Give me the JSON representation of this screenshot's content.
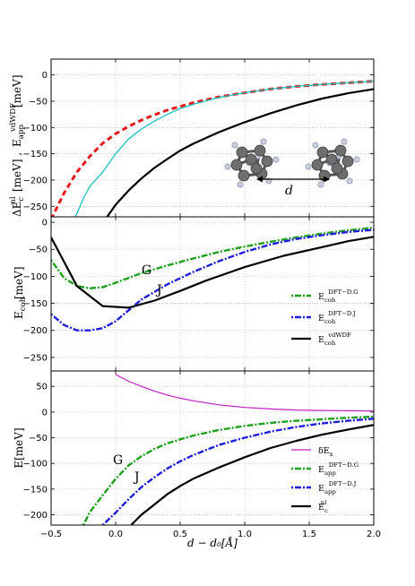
{
  "figure": {
    "xlabel": "d − d₀[Å]"
  },
  "chart_data": [
    {
      "type": "line",
      "panel": "top",
      "ylabel": "ΔE_c^nl[meV] ,  E_app^vdWDF[meV]",
      "xlim": [
        -0.5,
        2.0
      ],
      "ylim": [
        -270,
        30
      ],
      "yticks": [
        0,
        -50,
        -100,
        -150,
        -200,
        -250
      ],
      "legend": "none",
      "series": [
        {
          "color": "#e41a1c",
          "style": "dashed",
          "x": [
            -0.5,
            -0.4,
            -0.3,
            -0.2,
            -0.1,
            0.0,
            0.1,
            0.2,
            0.3,
            0.4,
            0.5,
            0.6,
            0.8,
            1.0,
            1.2,
            1.4,
            1.6,
            1.8,
            2.0
          ],
          "y": [
            -275,
            -225,
            -185,
            -155,
            -130,
            -112,
            -98,
            -86,
            -76,
            -67,
            -60,
            -53,
            -42,
            -34,
            -27,
            -22,
            -18,
            -15,
            -12
          ]
        },
        {
          "color": "#17bebb",
          "style": "solid",
          "x": [
            -0.32,
            -0.25,
            -0.2,
            -0.1,
            0.0,
            0.1,
            0.2,
            0.3,
            0.4,
            0.5,
            0.6,
            0.8,
            1.0,
            1.2,
            1.4,
            1.6,
            1.8,
            2.0
          ],
          "y": [
            -275,
            -235,
            -212,
            -185,
            -150,
            -122,
            -103,
            -88,
            -75,
            -64,
            -56,
            -43,
            -34,
            -27,
            -22,
            -18,
            -15,
            -12
          ]
        },
        {
          "color": "#000000",
          "style": "solid",
          "x": [
            -0.08,
            0.0,
            0.1,
            0.2,
            0.3,
            0.4,
            0.5,
            0.6,
            0.8,
            1.0,
            1.2,
            1.4,
            1.6,
            1.8,
            2.0
          ],
          "y": [
            -275,
            -247,
            -220,
            -197,
            -177,
            -160,
            -144,
            -131,
            -109,
            -90,
            -73,
            -58,
            -45,
            -35,
            -27
          ]
        }
      ],
      "annotations": [
        {
          "text": "d"
        }
      ]
    },
    {
      "type": "line",
      "panel": "middle",
      "ylabel": "E_coh[meV]",
      "xlim": [
        -0.5,
        2.0
      ],
      "ylim": [
        -275,
        10
      ],
      "yticks": [
        0,
        -50,
        -100,
        -150,
        -200,
        -250
      ],
      "legend": "right",
      "series": [
        {
          "name": "E_coh^DFT−D.G",
          "color": "#1f9e1f",
          "style": "dashdot",
          "x": [
            -0.5,
            -0.4,
            -0.3,
            -0.2,
            -0.1,
            0.0,
            0.1,
            0.2,
            0.4,
            0.6,
            0.8,
            1.0,
            1.2,
            1.4,
            1.6,
            1.8,
            2.0
          ],
          "y": [
            -70,
            -103,
            -118,
            -122,
            -120,
            -112,
            -103,
            -94,
            -80,
            -67,
            -55,
            -45,
            -36,
            -28,
            -21,
            -15,
            -10
          ]
        },
        {
          "name": "E_coh^DFT−D.J",
          "color": "#1f1fd9",
          "style": "dashdot",
          "x": [
            -0.5,
            -0.4,
            -0.3,
            -0.2,
            -0.1,
            0.0,
            0.1,
            0.2,
            0.4,
            0.6,
            0.8,
            1.0,
            1.2,
            1.4,
            1.6,
            1.8,
            2.0
          ],
          "y": [
            -170,
            -190,
            -200,
            -200,
            -196,
            -183,
            -163,
            -143,
            -115,
            -92,
            -72,
            -55,
            -41,
            -31,
            -24,
            -18,
            -14
          ]
        },
        {
          "name": "E_coh^vdWDF",
          "color": "#000000",
          "style": "solid",
          "x": [
            -0.5,
            -0.3,
            -0.1,
            0.1,
            0.3,
            0.5,
            0.7,
            1.0,
            1.3,
            1.6,
            1.8,
            2.0
          ],
          "y": [
            -28,
            -118,
            -155,
            -158,
            -145,
            -127,
            -108,
            -83,
            -62,
            -46,
            -35,
            -27
          ]
        }
      ],
      "annotations": [
        {
          "text": "G"
        },
        {
          "text": "J"
        }
      ]
    },
    {
      "type": "line",
      "panel": "bottom",
      "ylabel": "E[meV]",
      "xlim": [
        -0.5,
        2.0
      ],
      "ylim": [
        -220,
        80
      ],
      "yticks": [
        50,
        0,
        -50,
        -100,
        -150,
        -200
      ],
      "legend": "right",
      "series": [
        {
          "name": "δE_x",
          "color": "#c020c0",
          "style": "solid",
          "x": [
            0.0,
            0.1,
            0.2,
            0.3,
            0.4,
            0.5,
            0.6,
            0.8,
            1.0,
            1.2,
            1.4,
            1.6,
            1.8,
            2.0
          ],
          "y": [
            73,
            60,
            50,
            41,
            33,
            27,
            22,
            14,
            9,
            6,
            4,
            3,
            2.5,
            2
          ]
        },
        {
          "name": "E_app^DFT−D.G",
          "color": "#1f9e1f",
          "style": "dashdot",
          "x": [
            -0.25,
            -0.2,
            -0.1,
            0.0,
            0.1,
            0.2,
            0.3,
            0.4,
            0.5,
            0.6,
            0.8,
            1.0,
            1.2,
            1.4,
            1.6,
            1.8,
            2.0
          ],
          "y": [
            -220,
            -195,
            -162,
            -130,
            -104,
            -86,
            -72,
            -61,
            -53,
            -46,
            -35,
            -27,
            -21,
            -17,
            -14,
            -11,
            -9
          ]
        },
        {
          "name": "E_app^DFT−D.J",
          "color": "#1f1fd9",
          "style": "dashdot",
          "x": [
            -0.1,
            0.0,
            0.1,
            0.2,
            0.3,
            0.4,
            0.5,
            0.6,
            0.8,
            1.0,
            1.2,
            1.4,
            1.6,
            1.8,
            2.0
          ],
          "y": [
            -220,
            -196,
            -170,
            -146,
            -127,
            -110,
            -96,
            -84,
            -64,
            -50,
            -38,
            -29,
            -22,
            -17,
            -13
          ]
        },
        {
          "name": "E_c^nl",
          "color": "#000000",
          "style": "solid",
          "x": [
            0.12,
            0.2,
            0.3,
            0.4,
            0.5,
            0.6,
            0.8,
            1.0,
            1.2,
            1.4,
            1.6,
            1.8,
            2.0
          ],
          "y": [
            -220,
            -200,
            -180,
            -160,
            -144,
            -130,
            -108,
            -88,
            -70,
            -56,
            -44,
            -34,
            -25
          ]
        }
      ],
      "annotations": [
        {
          "text": "G"
        },
        {
          "text": "J"
        }
      ]
    }
  ]
}
